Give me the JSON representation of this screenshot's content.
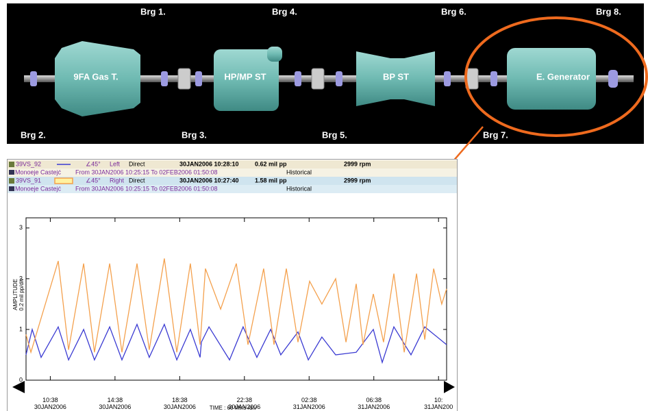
{
  "diagram": {
    "bearings": [
      "Brg 1.",
      "Brg 2.",
      "Brg 3.",
      "Brg 4.",
      "Brg 5.",
      "Brg 6.",
      "Brg 7.",
      "Brg 8."
    ],
    "components": [
      "9FA Gas T.",
      "HP/MP ST",
      "BP ST",
      "E. Generator"
    ]
  },
  "chart_data": {
    "type": "line",
    "y_label": "AMPLITUDE",
    "y_sublabel": "0.2 mil  pp/div",
    "x_label": "TIME : 60 Mins /div",
    "xlim": [
      -1.5,
      24.5
    ],
    "ylim": [
      0,
      3.2
    ],
    "yticks": [
      0,
      1,
      2,
      3
    ],
    "xticks": [
      {
        "value": 0,
        "label": "10:38\n30JAN2006"
      },
      {
        "value": 4,
        "label": "14:38\n30JAN2006"
      },
      {
        "value": 8,
        "label": "18:38\n30JAN2006"
      },
      {
        "value": 12,
        "label": "22:38\n30JAN2006"
      },
      {
        "value": 16,
        "label": "02:38\n31JAN2006"
      },
      {
        "value": 20,
        "label": "06:38\n31JAN2006"
      },
      {
        "value": 24,
        "label": "10:\n31JAN200"
      }
    ],
    "series": [
      {
        "name": "39VS_92",
        "color": "#3a3ad2",
        "angle": "∠45°",
        "side": "Left",
        "mode": "Direct",
        "timestamp": "30JAN2006 10:28:10",
        "reading": "0.62 mil  pp",
        "speed": "2999 rpm",
        "machine": "Monoeje Castejć",
        "range": "From 30JAN2006 10:25:15 To 02FEB2006 01:50:08",
        "source": "Historical",
        "x": [
          -1.5,
          -1.12,
          -0.57,
          0.49,
          1.13,
          2.06,
          2.73,
          3.67,
          4.43,
          5.36,
          6.12,
          7.05,
          7.82,
          8.66,
          9.26,
          9.34,
          9.81,
          11.08,
          11.92,
          12.77,
          13.62,
          14.25,
          15.31,
          15.95,
          16.79,
          17.64,
          18.91,
          19.97,
          20.52,
          21.24,
          22.3,
          23.15,
          24.5
        ],
        "values": [
          0.5,
          1.0,
          0.45,
          1.05,
          0.4,
          1.0,
          0.4,
          1.05,
          0.4,
          1.1,
          0.45,
          1.1,
          0.4,
          1.0,
          0.45,
          0.75,
          1.05,
          0.4,
          1.05,
          0.45,
          1.0,
          0.5,
          0.95,
          0.4,
          0.85,
          0.5,
          0.55,
          1.0,
          0.35,
          1.05,
          0.5,
          1.05,
          0.7
        ]
      },
      {
        "name": "39VS_91",
        "color": "#f4a04c",
        "angle": "∠45°",
        "side": "Right",
        "mode": "Direct",
        "timestamp": "30JAN2006 10:27:40",
        "reading": "1.58 mil  pp",
        "speed": "2999 rpm",
        "machine": "Monoeje Castejć",
        "range": "From 30JAN2006 10:25:15 To 02FEB2006 01:50:08",
        "source": "Historical",
        "x": [
          -1.5,
          -1.2,
          0.49,
          1.13,
          2.06,
          2.73,
          3.67,
          4.43,
          5.36,
          6.12,
          7.05,
          7.82,
          8.66,
          9.26,
          9.59,
          10.53,
          11.5,
          12.22,
          13.19,
          13.83,
          14.59,
          15.31,
          16.03,
          16.79,
          17.64,
          18.28,
          18.91,
          19.33,
          19.97,
          20.6,
          21.24,
          21.88,
          22.64,
          23.15,
          23.7,
          24.2,
          24.5
        ],
        "values": [
          0.9,
          0.55,
          2.35,
          0.6,
          2.3,
          0.55,
          2.3,
          0.55,
          2.3,
          0.6,
          2.4,
          0.55,
          2.3,
          0.7,
          2.2,
          1.4,
          2.3,
          0.7,
          2.2,
          0.7,
          2.2,
          0.75,
          1.95,
          1.5,
          2.0,
          0.75,
          1.9,
          0.7,
          1.7,
          0.75,
          2.1,
          0.55,
          2.1,
          0.8,
          2.2,
          1.5,
          1.8
        ]
      }
    ]
  }
}
